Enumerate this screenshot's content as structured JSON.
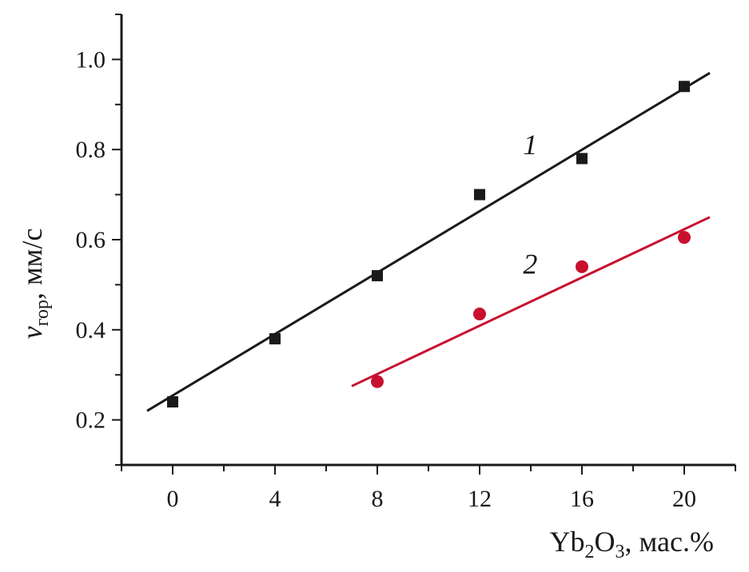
{
  "chart_data": {
    "type": "scatter",
    "xlabel": {
      "main": "Yb",
      "sub1": "2",
      "mid": "O",
      "sub2": "3",
      "rest": ", мас.%"
    },
    "ylabel": {
      "main": "v",
      "sub": "гор",
      "rest": ", мм/с"
    },
    "xlim": [
      -2,
      22
    ],
    "ylim": [
      0.1,
      1.1
    ],
    "x_ticks": [
      0,
      4,
      8,
      12,
      16,
      20
    ],
    "x_tick_labels": [
      "0",
      "4",
      "8",
      "12",
      "16",
      "20"
    ],
    "x_minor_step": 2,
    "y_ticks": [
      0.2,
      0.4,
      0.6,
      0.8,
      1.0
    ],
    "y_tick_labels": [
      "0.2",
      "0.4",
      "0.6",
      "0.8",
      "1.0"
    ],
    "y_minor_step": 0.1,
    "grid": false,
    "series": [
      {
        "name": "1",
        "marker": "square",
        "color": "#1a1a1a",
        "x": [
          0,
          4,
          8,
          12,
          16,
          20
        ],
        "y": [
          0.24,
          0.38,
          0.52,
          0.7,
          0.78,
          0.94
        ],
        "fit_line": {
          "x": [
            -1,
            21
          ],
          "y": [
            0.22,
            0.97
          ]
        },
        "label_at": {
          "x": 13.7,
          "y": 0.79
        }
      },
      {
        "name": "2",
        "marker": "circle",
        "color": "#c8102e",
        "x": [
          8,
          12,
          16,
          20
        ],
        "y": [
          0.285,
          0.435,
          0.54,
          0.605
        ],
        "fit_line": {
          "x": [
            7,
            21
          ],
          "y": [
            0.275,
            0.65
          ]
        },
        "label_at": {
          "x": 13.7,
          "y": 0.525
        }
      }
    ]
  }
}
